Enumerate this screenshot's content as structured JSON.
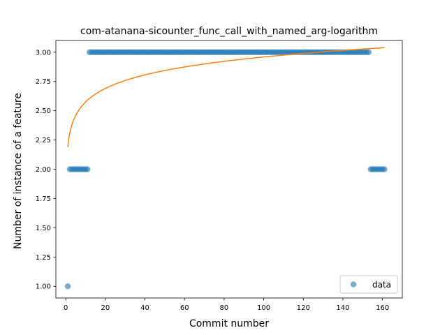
{
  "chart_data": {
    "type": "scatter",
    "title": "com-atanana-sicounter_func_call_with_named_arg-logarithm",
    "xlabel": "Commit number",
    "ylabel": "Number of instance of a feature",
    "xlim": [
      -5.0,
      170.0
    ],
    "ylim": [
      0.9,
      3.1
    ],
    "xticks": [
      0,
      20,
      40,
      60,
      80,
      100,
      120,
      140,
      160
    ],
    "yticks": [
      1.0,
      1.25,
      1.5,
      1.75,
      2.0,
      2.25,
      2.5,
      2.75,
      3.0
    ],
    "xtick_labels": [
      "0",
      "20",
      "40",
      "60",
      "80",
      "100",
      "120",
      "140",
      "160"
    ],
    "ytick_labels": [
      "1.00",
      "1.25",
      "1.50",
      "1.75",
      "2.00",
      "2.25",
      "2.50",
      "2.75",
      "3.00"
    ],
    "grid": false,
    "legend": {
      "position": "lower-right",
      "entries": [
        "data"
      ]
    },
    "colors": {
      "data": "#1f77b4",
      "fit": "#ff7f0e"
    },
    "series": [
      {
        "name": "data",
        "kind": "scatter",
        "segments": [
          {
            "x_start": 1,
            "x_end": 1,
            "y": 1.0
          },
          {
            "x_start": 2,
            "x_end": 11,
            "y": 2.0
          },
          {
            "x_start": 12,
            "x_end": 153,
            "y": 3.0
          },
          {
            "x_start": 154,
            "x_end": 161,
            "y": 2.0
          }
        ]
      },
      {
        "kind": "line",
        "model": "logarithmic",
        "a": 2.19,
        "b": 0.167,
        "x_range": [
          1,
          161
        ]
      }
    ]
  }
}
